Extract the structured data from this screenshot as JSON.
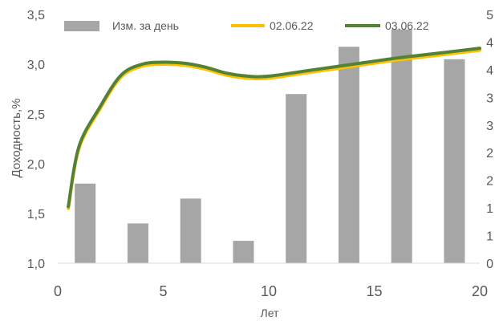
{
  "chart_data": {
    "type": "bar",
    "title": "",
    "xlabel": "Лет",
    "ylabel": "Доходность,%",
    "x_ticks": [
      "0",
      "5",
      "10",
      "15",
      "20"
    ],
    "y_left_ticks": [
      "1,0",
      "1,5",
      "2,0",
      "2,5",
      "3,0",
      "3,5"
    ],
    "y_right_ticks": [
      "0",
      "1",
      "1",
      "2",
      "2",
      "3",
      "3",
      "4",
      "4",
      "5"
    ],
    "xlim": [
      0,
      20
    ],
    "ylim": [
      1.0,
      3.5
    ],
    "y2lim": [
      0,
      5
    ],
    "grid": false,
    "legend_position": "top",
    "bars": {
      "name": "Изм. за день",
      "axis": "right",
      "color": "#a6a6a6",
      "x": [
        1.3,
        3.8,
        6.3,
        8.8,
        11.3,
        13.8,
        16.3,
        18.8
      ],
      "values": [
        1.6,
        0.8,
        1.3,
        0.45,
        3.4,
        4.35,
        4.7,
        4.1
      ]
    },
    "series": [
      {
        "name": "02.06.22",
        "axis": "left",
        "color": "#ffc000",
        "x": [
          0.5,
          1,
          2,
          3,
          4,
          5,
          6,
          7,
          8,
          9,
          10,
          12,
          14,
          16,
          18,
          20
        ],
        "values": [
          1.55,
          2.15,
          2.55,
          2.87,
          2.98,
          3.0,
          2.99,
          2.95,
          2.89,
          2.86,
          2.86,
          2.92,
          2.98,
          3.04,
          3.09,
          3.14
        ]
      },
      {
        "name": "03.06.22",
        "axis": "left",
        "color": "#548235",
        "x": [
          0.5,
          1,
          2,
          3,
          4,
          5,
          6,
          7,
          8,
          9,
          10,
          12,
          14,
          16,
          18,
          20
        ],
        "values": [
          1.57,
          2.17,
          2.57,
          2.89,
          3.0,
          3.02,
          3.01,
          2.97,
          2.91,
          2.88,
          2.88,
          2.94,
          3.0,
          3.06,
          3.11,
          3.16
        ]
      }
    ]
  }
}
